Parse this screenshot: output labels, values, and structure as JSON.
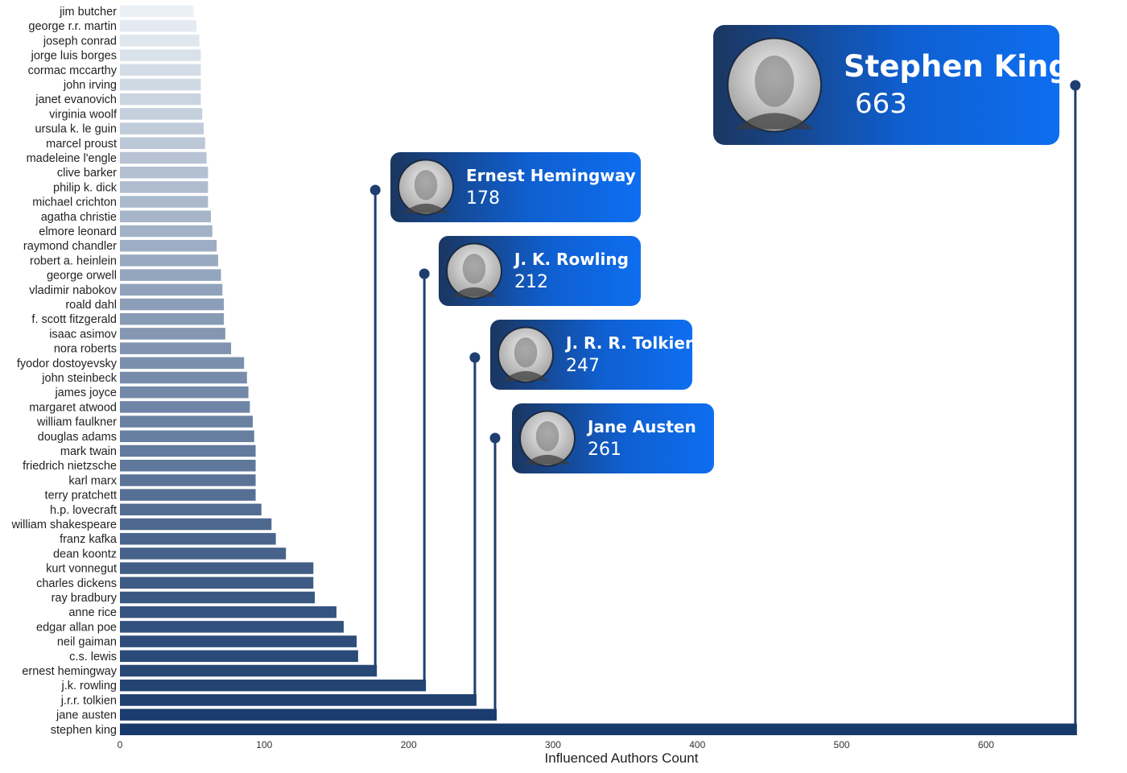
{
  "chart_data": {
    "type": "bar",
    "orientation": "horizontal",
    "xlabel": "Influenced Authors Count",
    "xlim": [
      0,
      670
    ],
    "xticks": [
      0,
      100,
      200,
      300,
      400,
      500,
      600
    ],
    "colors": {
      "light": "#eaf0f6",
      "dark": "#17396b",
      "connector": "#1e3e70",
      "card_start": "#1b3660",
      "card_end": "#0e6ef0"
    },
    "categories": [
      "jim butcher",
      "george r.r. martin",
      "joseph conrad",
      "jorge luis borges",
      "cormac mccarthy",
      "john irving",
      "janet evanovich",
      "virginia woolf",
      "ursula k. le guin",
      "marcel proust",
      "madeleine l'engle",
      "clive barker",
      "philip k. dick",
      "michael crichton",
      "agatha christie",
      "elmore leonard",
      "raymond chandler",
      "robert a. heinlein",
      "george orwell",
      "vladimir nabokov",
      "roald dahl",
      "f. scott fitzgerald",
      "isaac asimov",
      "nora roberts",
      "fyodor dostoyevsky",
      "john steinbeck",
      "james joyce",
      "margaret atwood",
      "william faulkner",
      "douglas adams",
      "mark twain",
      "friedrich nietzsche",
      "karl marx",
      "terry pratchett",
      "h.p. lovecraft",
      "william shakespeare",
      "franz kafka",
      "dean koontz",
      "kurt vonnegut",
      "charles dickens",
      "ray bradbury",
      "anne rice",
      "edgar allan poe",
      "neil gaiman",
      "c.s. lewis",
      "ernest hemingway",
      "j.k. rowling",
      "j.r.r. tolkien",
      "jane austen",
      "stephen king"
    ],
    "values": [
      51,
      53,
      55,
      56,
      56,
      56,
      56,
      57,
      58,
      59,
      60,
      61,
      61,
      61,
      63,
      64,
      67,
      68,
      70,
      71,
      72,
      72,
      73,
      77,
      86,
      88,
      89,
      90,
      92,
      93,
      94,
      94,
      94,
      94,
      98,
      105,
      108,
      115,
      134,
      134,
      135,
      150,
      155,
      164,
      165,
      178,
      212,
      247,
      261,
      663
    ],
    "highlights": [
      {
        "name": "Stephen King",
        "value": "663",
        "category": "stephen king",
        "portrait": "stephen-king-portrait"
      },
      {
        "name": "Ernest Hemingway",
        "value": "178",
        "category": "ernest hemingway",
        "portrait": "ernest-hemingway-portrait"
      },
      {
        "name": "J. K. Rowling",
        "value": "212",
        "category": "j.k. rowling",
        "portrait": "jk-rowling-portrait"
      },
      {
        "name": "J. R. R. Tolkien",
        "value": "247",
        "category": "j.r.r. tolkien",
        "portrait": "jrr-tolkien-portrait"
      },
      {
        "name": "Jane Austen",
        "value": "261",
        "category": "jane austen",
        "portrait": "jane-austen-portrait"
      }
    ]
  }
}
